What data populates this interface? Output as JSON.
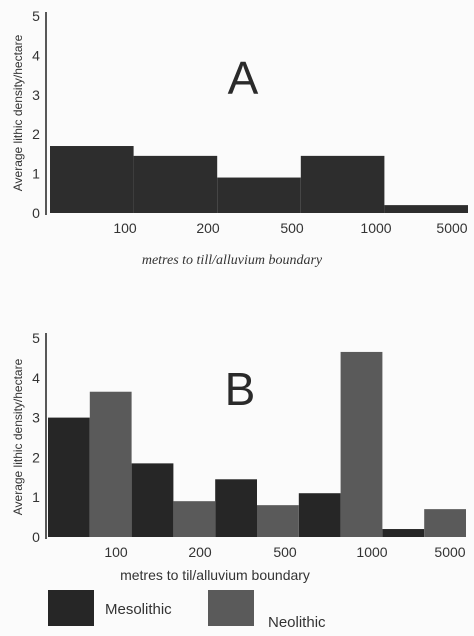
{
  "chart_data": [
    {
      "type": "bar",
      "panel_label": "A",
      "ylabel": "Average lithic density/hectare",
      "xlabel": "metres to till/alluvium boundary",
      "ylim": [
        0,
        5
      ],
      "yticks": [
        "0",
        "1",
        "2",
        "3",
        "4",
        "5"
      ],
      "xticks": [
        "100",
        "200",
        "500",
        "1000",
        "5000"
      ],
      "categories": [
        "<100",
        "100-200",
        "200-500",
        "500-1000",
        "1000-5000"
      ],
      "values": [
        1.7,
        1.45,
        0.9,
        1.45,
        0.2
      ],
      "color": "#2d2d2d"
    },
    {
      "type": "bar",
      "panel_label": "B",
      "ylabel": "Average lithic density/hectare",
      "xlabel": "metres to til/alluvium boundary",
      "ylim": [
        0,
        5
      ],
      "yticks": [
        "0",
        "1",
        "2",
        "3",
        "4",
        "5"
      ],
      "xticks": [
        "100",
        "200",
        "500",
        "1000",
        "5000"
      ],
      "categories": [
        "<100",
        "100-200",
        "200-500",
        "500-1000",
        "1000-5000"
      ],
      "series": [
        {
          "name": "Mesolithic",
          "values": [
            3.0,
            1.85,
            1.45,
            1.1,
            0.2
          ],
          "color": "#262626"
        },
        {
          "name": "Neolithic",
          "values": [
            3.65,
            0.9,
            0.8,
            4.65,
            0.7
          ],
          "color": "#5a5a5a"
        }
      ],
      "legend": [
        "Mesolithic",
        "Neolithic"
      ]
    }
  ]
}
